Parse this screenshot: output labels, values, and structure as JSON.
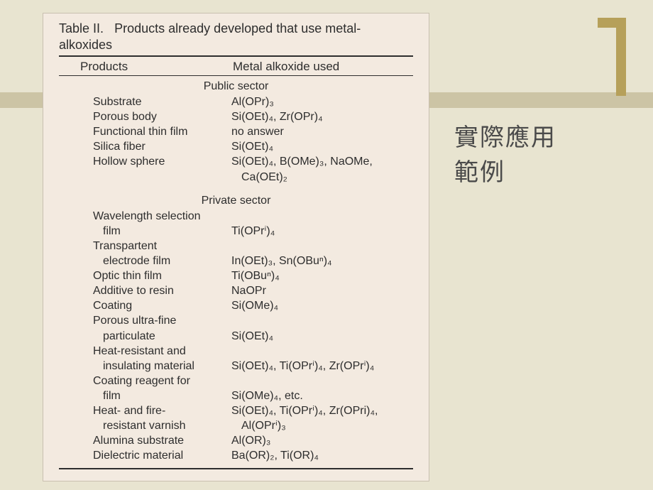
{
  "slide": {
    "background": "#e8e4d0",
    "band_color": "#ccc4a5",
    "accent_color": "#b6a05a",
    "scan_bg": "#f3eae0",
    "text_color": "#2d2d2d"
  },
  "table": {
    "title_a": "Table II.",
    "title_b": "Products already developed that use metal-",
    "title_c": "alkoxides",
    "header_products": "Products",
    "header_alkoxide": "Metal alkoxide used",
    "section_public": "Public sector",
    "section_private": "Private sector",
    "public_rows": [
      {
        "p": "Substrate",
        "a": "Al(OPr)₃"
      },
      {
        "p": "Porous body",
        "a": "Si(OEt)₄, Zr(OPr)₄"
      },
      {
        "p": "Functional thin film",
        "a": "no answer"
      },
      {
        "p": "Silica fiber",
        "a": "Si(OEt)₄"
      },
      {
        "p": "Hollow sphere",
        "a": "Si(OEt)₄, B(OMe)₃, NaOMe,"
      },
      {
        "p": "",
        "a_indent": true,
        "a": "Ca(OEt)₂"
      }
    ],
    "private_rows": [
      {
        "p": "Wavelength selection",
        "a": ""
      },
      {
        "p_indent": true,
        "p": "film",
        "a": "Ti(OPrⁱ)₄"
      },
      {
        "p": "Transpartent",
        "a": ""
      },
      {
        "p_indent": true,
        "p": "electrode film",
        "a": "In(OEt)₃, Sn(OBuⁿ)₄"
      },
      {
        "p": "Optic thin film",
        "a": "Ti(OBuⁿ)₄"
      },
      {
        "p": "Additive to resin",
        "a": "NaOPr"
      },
      {
        "p": "Coating",
        "a": "Si(OMe)₄"
      },
      {
        "p": "Porous ultra-fine",
        "a": ""
      },
      {
        "p_indent": true,
        "p": "particulate",
        "a": "Si(OEt)₄"
      },
      {
        "p": "Heat-resistant and",
        "a": ""
      },
      {
        "p_indent": true,
        "p": "insulating material",
        "a": "Si(OEt)₄, Ti(OPrⁱ)₄, Zr(OPrⁱ)₄"
      },
      {
        "p": "Coating reagent for",
        "a": ""
      },
      {
        "p_indent": true,
        "p": "film",
        "a": "Si(OMe)₄, etc."
      },
      {
        "p": "Heat- and fire-",
        "a": "Si(OEt)₄, Ti(OPrⁱ)₄, Zr(OPri)₄,"
      },
      {
        "p_indent": true,
        "p": "resistant varnish",
        "a_indent": true,
        "a": "Al(OPrⁱ)₃"
      },
      {
        "p": "Alumina substrate",
        "a": "Al(OR)₃"
      },
      {
        "p": "Dielectric material",
        "a": "Ba(OR)₂, Ti(OR)₄"
      }
    ]
  },
  "side": {
    "line1": "實際應用",
    "line2": "範例"
  }
}
